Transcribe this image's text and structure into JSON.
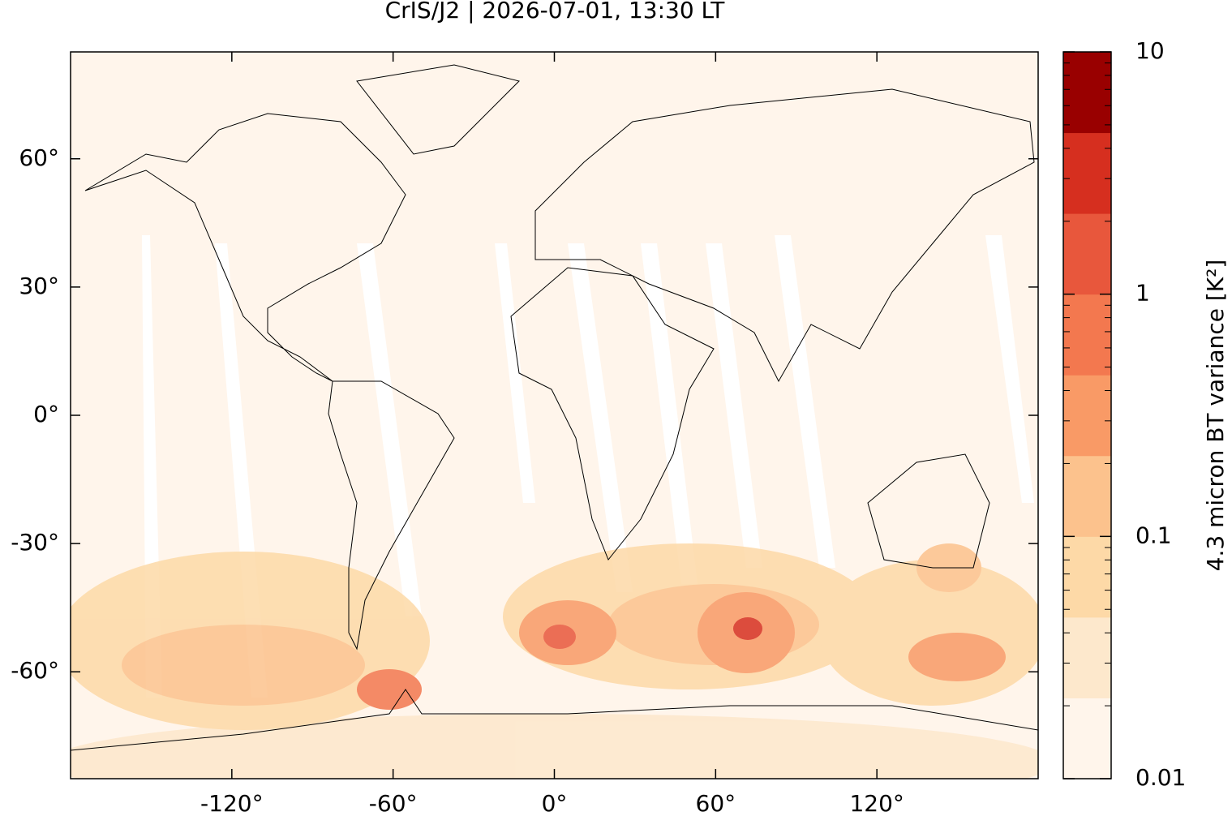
{
  "chart_data": {
    "type": "map",
    "title": "CrIS/J2 | 2026-07-01, 13:30 LT",
    "xlim": [
      -180,
      180
    ],
    "ylim": [
      -85,
      85
    ],
    "xticks": [
      {
        "value": -120,
        "label": "-120°"
      },
      {
        "value": -60,
        "label": "-60°"
      },
      {
        "value": 0,
        "label": "0°"
      },
      {
        "value": 60,
        "label": "60°"
      },
      {
        "value": 120,
        "label": "120°"
      }
    ],
    "yticks": [
      {
        "value": 60,
        "label": "60°"
      },
      {
        "value": 30,
        "label": "30°"
      },
      {
        "value": 0,
        "label": "0°"
      },
      {
        "value": -30,
        "label": "-30°"
      },
      {
        "value": -60,
        "label": "-60°"
      }
    ],
    "colorbar": {
      "label": "4.3 micron BT variance [K²]",
      "scale": "log",
      "lim": [
        0.01,
        10
      ],
      "ticks": [
        0.01,
        0.1,
        1,
        10
      ],
      "colors": [
        "#fff5eb",
        "#fde8cc",
        "#fdd9a7",
        "#fcc28d",
        "#f99a66",
        "#f3784f",
        "#e8573c",
        "#d62f1f",
        "#990000"
      ]
    }
  }
}
